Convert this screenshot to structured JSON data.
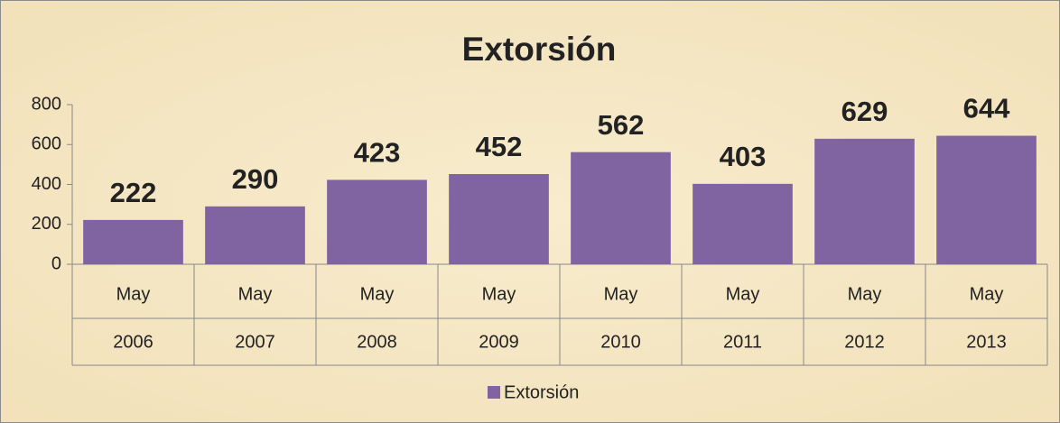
{
  "chart_data": {
    "type": "bar",
    "title": "Extorsión",
    "categories": [
      [
        "May",
        "2006"
      ],
      [
        "May",
        "2007"
      ],
      [
        "May",
        "2008"
      ],
      [
        "May",
        "2009"
      ],
      [
        "May",
        "2010"
      ],
      [
        "May",
        "2011"
      ],
      [
        "May",
        "2012"
      ],
      [
        "May",
        "2013"
      ]
    ],
    "series": [
      {
        "name": "Extorsión",
        "color": "#8064a2",
        "values": [
          222,
          290,
          423,
          452,
          562,
          403,
          629,
          644
        ]
      }
    ],
    "ylim": [
      0,
      800
    ],
    "yticks": [
      0,
      200,
      400,
      600,
      800
    ],
    "grid": false,
    "legend": "bottom"
  }
}
